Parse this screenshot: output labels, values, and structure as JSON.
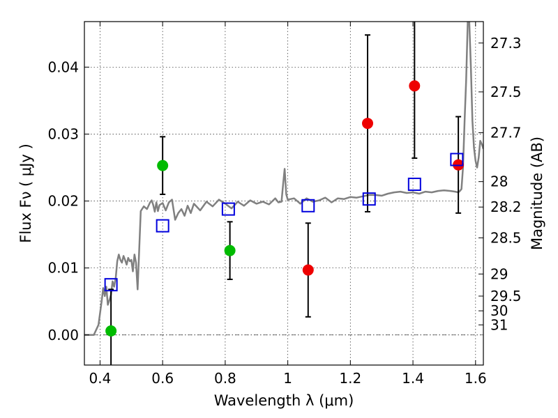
{
  "chart_data": {
    "type": "scatter",
    "xlabel": "Wavelength  λ (μm)",
    "ylabel": "Flux  Fν  ( μJy )",
    "ylabel_right": "Magnitude (AB)",
    "xlim": [
      0.35,
      1.625
    ],
    "ylim": [
      -0.0045,
      0.0468
    ],
    "x_ticks": [
      0.4,
      0.6,
      0.8,
      1.0,
      1.2,
      1.4,
      1.6
    ],
    "x_tick_labels": [
      "0.4",
      "0.6",
      "0.8",
      "1",
      "1.2",
      "1.4",
      "1.6"
    ],
    "y_ticks": [
      0.0,
      0.01,
      0.02,
      0.03,
      0.04
    ],
    "y_tick_labels": [
      "0.00",
      "0.01",
      "0.02",
      "0.03",
      "0.04"
    ],
    "grid": true,
    "zero_line": 0.0,
    "right_axis_ticks": [
      {
        "label": "27.3",
        "flux": 0.0436
      },
      {
        "label": "27.5",
        "flux": 0.0363
      },
      {
        "label": "27.7",
        "flux": 0.0302
      },
      {
        "label": "28",
        "flux": 0.0229
      },
      {
        "label": "28.2",
        "flux": 0.0191
      },
      {
        "label": "28.5",
        "flux": 0.0145
      },
      {
        "label": "29",
        "flux": 0.0091
      },
      {
        "label": "29.5",
        "flux": 0.0058
      },
      {
        "label": "30",
        "flux": 0.0036
      },
      {
        "label": "31",
        "flux": 0.0015
      }
    ],
    "series": [
      {
        "kind": "line",
        "color": "#808080",
        "x": [
          0.35,
          0.38,
          0.395,
          0.405,
          0.41,
          0.415,
          0.42,
          0.425,
          0.43,
          0.435,
          0.44,
          0.445,
          0.45,
          0.455,
          0.46,
          0.465,
          0.47,
          0.475,
          0.48,
          0.485,
          0.49,
          0.495,
          0.5,
          0.505,
          0.51,
          0.515,
          0.52,
          0.53,
          0.54,
          0.55,
          0.56,
          0.565,
          0.57,
          0.575,
          0.58,
          0.585,
          0.59,
          0.6,
          0.61,
          0.62,
          0.63,
          0.64,
          0.65,
          0.66,
          0.67,
          0.68,
          0.69,
          0.7,
          0.72,
          0.74,
          0.76,
          0.78,
          0.8,
          0.82,
          0.84,
          0.86,
          0.88,
          0.9,
          0.92,
          0.94,
          0.96,
          0.97,
          0.98,
          0.985,
          0.99,
          0.995,
          1.0,
          1.02,
          1.04,
          1.06,
          1.08,
          1.1,
          1.12,
          1.14,
          1.16,
          1.18,
          1.2,
          1.22,
          1.24,
          1.26,
          1.28,
          1.3,
          1.32,
          1.34,
          1.36,
          1.38,
          1.4,
          1.42,
          1.44,
          1.46,
          1.48,
          1.5,
          1.52,
          1.535,
          1.545,
          1.55,
          1.555,
          1.56,
          1.565,
          1.57,
          1.575,
          1.58,
          1.585,
          1.59,
          1.595,
          1.6,
          1.605,
          1.61,
          1.615,
          1.62,
          1.625
        ],
        "y": [
          0.0,
          0.0,
          0.0015,
          0.005,
          0.007,
          0.0058,
          0.0072,
          0.0045,
          0.0052,
          0.006,
          0.008,
          0.0072,
          0.0085,
          0.011,
          0.012,
          0.0112,
          0.0108,
          0.0118,
          0.0112,
          0.0105,
          0.0115,
          0.011,
          0.0112,
          0.0095,
          0.012,
          0.0108,
          0.0068,
          0.0185,
          0.0192,
          0.0188,
          0.0198,
          0.0201,
          0.0194,
          0.0184,
          0.0198,
          0.0185,
          0.0194,
          0.0197,
          0.0186,
          0.0198,
          0.0202,
          0.0172,
          0.0182,
          0.0188,
          0.0178,
          0.0193,
          0.0182,
          0.0196,
          0.0186,
          0.0199,
          0.0192,
          0.0202,
          0.0196,
          0.0189,
          0.0199,
          0.0193,
          0.0201,
          0.0196,
          0.0199,
          0.0195,
          0.0204,
          0.0198,
          0.0199,
          0.0225,
          0.0248,
          0.021,
          0.0202,
          0.0204,
          0.0196,
          0.0204,
          0.0199,
          0.0201,
          0.0205,
          0.0198,
          0.0204,
          0.0203,
          0.0206,
          0.0205,
          0.0207,
          0.0209,
          0.0209,
          0.0208,
          0.0211,
          0.0213,
          0.0214,
          0.0212,
          0.0213,
          0.0211,
          0.0214,
          0.0213,
          0.0215,
          0.0216,
          0.0215,
          0.0214,
          0.0213,
          0.0215,
          0.0218,
          0.025,
          0.032,
          0.038,
          0.0468,
          0.0468,
          0.04,
          0.032,
          0.028,
          0.026,
          0.025,
          0.0265,
          0.029,
          0.0285,
          0.0278
        ]
      },
      {
        "kind": "markers",
        "marker": "circle",
        "color": "#00bb00",
        "x": [
          0.435,
          0.6,
          0.815
        ],
        "y": [
          0.0006,
          0.0253,
          0.0126
        ],
        "yerr_low": [
          0.0062,
          0.0043,
          0.0043
        ],
        "yerr_high": [
          0.0062,
          0.0043,
          0.0043
        ]
      },
      {
        "kind": "markers",
        "marker": "circle",
        "color": "#ee0000",
        "x": [
          1.065,
          1.255,
          1.405,
          1.545
        ],
        "y": [
          0.0097,
          0.0316,
          0.0372,
          0.0254
        ],
        "yerr_low": [
          0.007,
          0.0132,
          0.0108,
          0.0072
        ],
        "yerr_high": [
          0.007,
          0.0132,
          0.0108,
          0.0072
        ]
      },
      {
        "kind": "markers",
        "marker": "open-square",
        "color": "#0000dd",
        "x": [
          0.435,
          0.6,
          0.81,
          1.065,
          1.26,
          1.405,
          1.54
        ],
        "y": [
          0.0075,
          0.0163,
          0.0188,
          0.0193,
          0.0203,
          0.0225,
          0.0262
        ]
      }
    ]
  }
}
